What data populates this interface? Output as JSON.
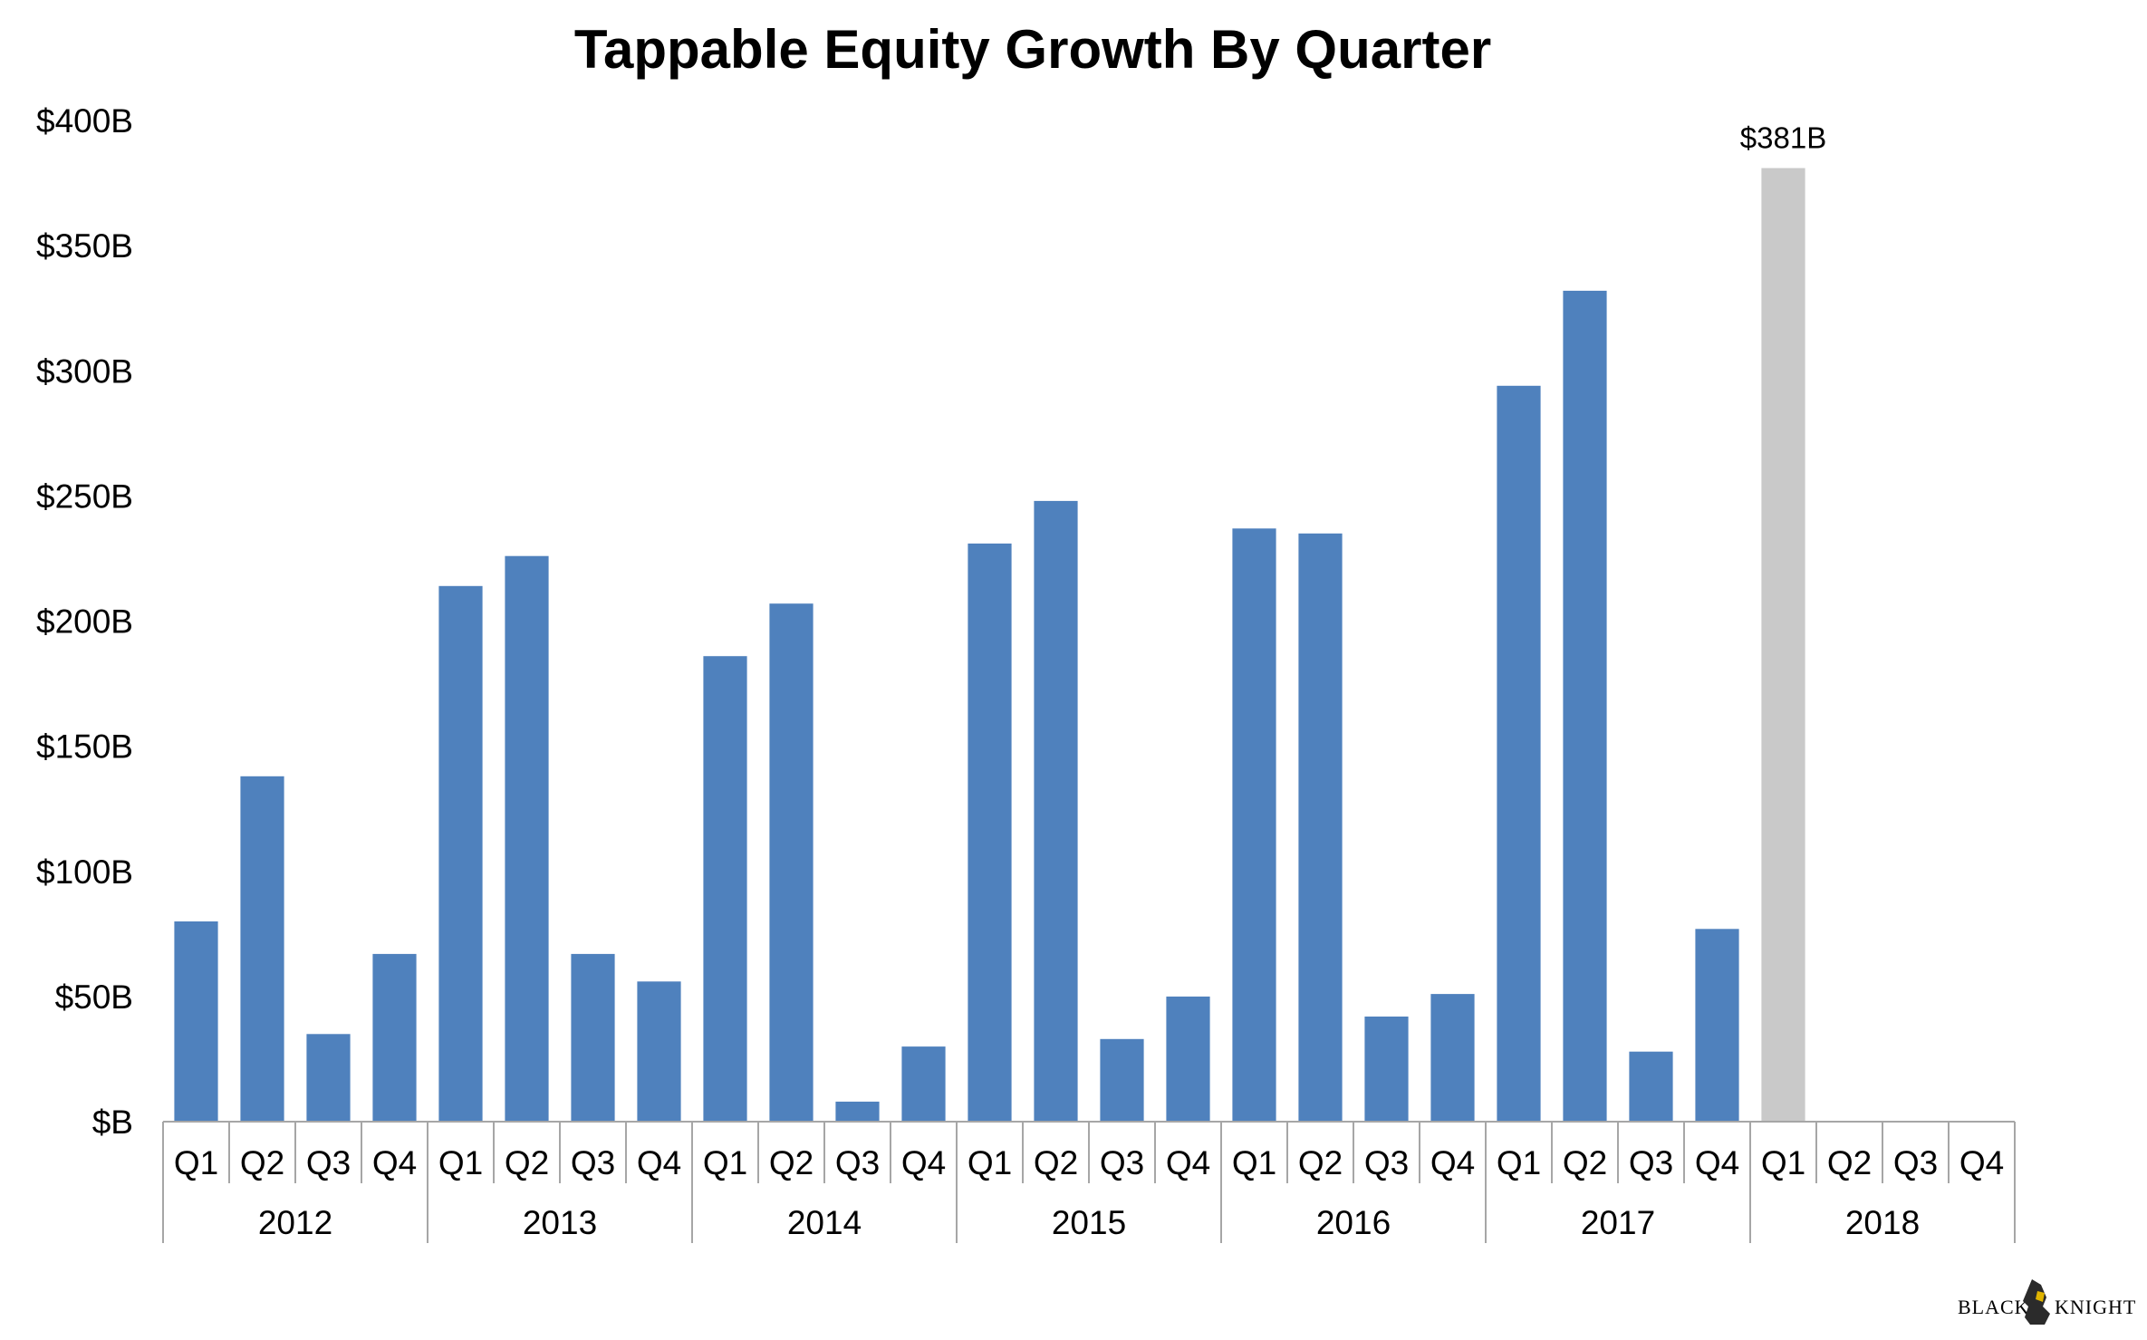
{
  "chart_data": {
    "type": "bar",
    "title": "Tappable Equity Growth By Quarter",
    "xlabel": "",
    "ylabel": "",
    "ylim": [
      0,
      400
    ],
    "y_ticks": [
      "$B",
      "$50B",
      "$100B",
      "$150B",
      "$200B",
      "$250B",
      "$300B",
      "$350B",
      "$400B"
    ],
    "y_tick_values": [
      0,
      50,
      100,
      150,
      200,
      250,
      300,
      350,
      400
    ],
    "years": [
      "2012",
      "2013",
      "2014",
      "2015",
      "2016",
      "2017",
      "2018"
    ],
    "quarters": [
      "Q1",
      "Q2",
      "Q3",
      "Q4"
    ],
    "values": [
      80,
      138,
      35,
      67,
      214,
      226,
      67,
      56,
      186,
      207,
      8,
      30,
      231,
      248,
      33,
      50,
      237,
      235,
      42,
      51,
      294,
      332,
      28,
      77,
      381,
      null,
      null,
      null
    ],
    "highlight_index": 24,
    "highlight_label": "$381B",
    "colors": {
      "bar": "#4f81bd",
      "highlight": "#c9c9c9"
    }
  },
  "logo": {
    "text_left": "BLACK",
    "text_right": "KNIGHT"
  }
}
